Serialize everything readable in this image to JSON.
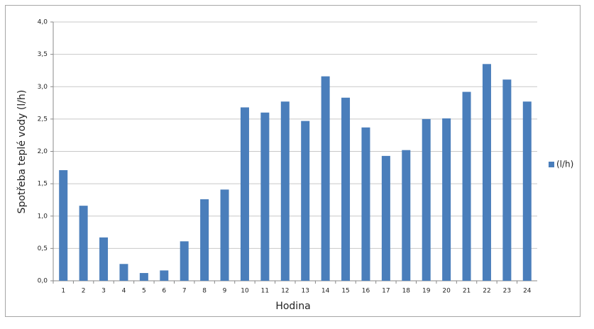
{
  "chart_data": {
    "type": "bar",
    "x_label": "Hodina",
    "y_label": "Spotřeba teplé vody (l/h)",
    "categories": [
      "1",
      "2",
      "3",
      "4",
      "5",
      "6",
      "7",
      "8",
      "9",
      "10",
      "11",
      "12",
      "13",
      "14",
      "15",
      "16",
      "17",
      "18",
      "19",
      "20",
      "21",
      "22",
      "23",
      "24"
    ],
    "series": [
      {
        "name": "(l/h)",
        "color": "#4a7ebb",
        "values": [
          1.71,
          1.16,
          0.67,
          0.26,
          0.12,
          0.16,
          0.61,
          1.26,
          1.41,
          2.68,
          2.6,
          2.77,
          2.47,
          3.16,
          2.83,
          2.37,
          1.93,
          2.02,
          2.5,
          2.51,
          2.92,
          3.35,
          3.11,
          2.77
        ]
      }
    ],
    "ylim": [
      0,
      4
    ],
    "yticks": [
      {
        "value": 0,
        "label": "0,0"
      },
      {
        "value": 0.5,
        "label": "0,5"
      },
      {
        "value": 1,
        "label": "1,0"
      },
      {
        "value": 1.5,
        "label": "1,5"
      },
      {
        "value": 2,
        "label": "2,0"
      },
      {
        "value": 2.5,
        "label": "2,5"
      },
      {
        "value": 3,
        "label": "3,0"
      },
      {
        "value": 3.5,
        "label": "3,5"
      },
      {
        "value": 4,
        "label": "4,0"
      }
    ],
    "grid": true,
    "legend": "right"
  }
}
